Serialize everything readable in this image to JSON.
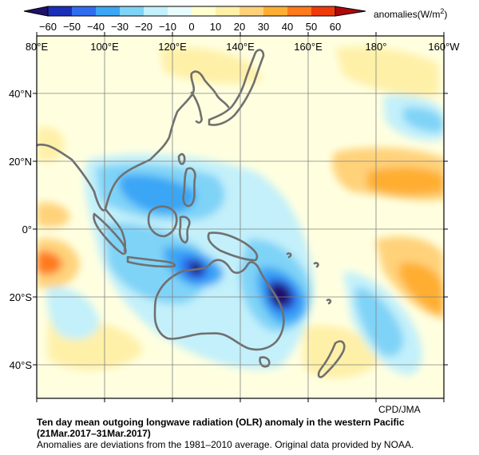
{
  "colorbar": {
    "unit_label": "anomalies(W/m",
    "unit_superscript": "2",
    "unit_close": ")",
    "ticks": [
      "−60",
      "−50",
      "−40",
      "−30",
      "−20",
      "−10",
      "0",
      "10",
      "20",
      "30",
      "40",
      "50",
      "60"
    ],
    "colors": [
      "#1b2fb8",
      "#2f6df0",
      "#3aa6f5",
      "#7fd3f7",
      "#c3f0fa",
      "#e8fbfd",
      "#ffffd0",
      "#fff0a8",
      "#ffd27a",
      "#ffae33",
      "#ff7a1a",
      "#f03a0a"
    ],
    "low_end_color": "#20106a",
    "high_end_color": "#b0080a"
  },
  "map": {
    "lon_labels": [
      "80°E",
      "100°E",
      "120°E",
      "140°E",
      "160°E",
      "180°",
      "160°W"
    ],
    "lat_labels": [
      "40°N",
      "20°N",
      "0°",
      "20°S",
      "40°S"
    ],
    "colors": {
      "neutral": "#ffffe0",
      "ocean_pale": "#ffffd0",
      "neg_light": "#c3f0fa",
      "neg_mid": "#7fd3f7",
      "neg_strong": "#3aa6f5",
      "neg_deep": "#2f6df0",
      "neg_extreme": "#20106a",
      "pos_light": "#fff0a8",
      "pos_mid": "#ffd27a",
      "pos_strong": "#ffae33",
      "pos_red": "#ff7a1a",
      "coast": "#707070",
      "grid": "#808080"
    }
  },
  "credit": "CPD/JMA",
  "caption": {
    "title": "Ten day mean outgoing longwave radiation (OLR) anomaly in the western Pacific",
    "period": "(21Mar.2017–31Mar.2017)",
    "note": "Anomalies are deviations from the 1981–2010 average. Original data provided by NOAA."
  }
}
